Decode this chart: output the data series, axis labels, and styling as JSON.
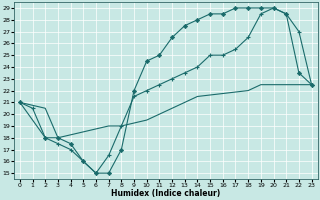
{
  "xlabel": "Humidex (Indice chaleur)",
  "bg_color": "#c8e8e4",
  "line_color": "#1a6b6b",
  "grid_color": "#b0d8d4",
  "xlim": [
    -0.5,
    23.5
  ],
  "ylim": [
    14.5,
    29.5
  ],
  "xticks": [
    0,
    1,
    2,
    3,
    4,
    5,
    6,
    7,
    8,
    9,
    10,
    11,
    12,
    13,
    14,
    15,
    16,
    17,
    18,
    19,
    20,
    21,
    22,
    23
  ],
  "yticks": [
    15,
    16,
    17,
    18,
    19,
    20,
    21,
    22,
    23,
    24,
    25,
    26,
    27,
    28,
    29
  ],
  "line1_x": [
    0,
    1,
    2,
    3,
    4,
    5,
    6,
    7,
    8,
    9,
    10,
    11,
    12,
    13,
    14,
    15,
    16,
    17,
    18,
    19,
    20,
    21,
    22,
    23
  ],
  "line1_y": [
    21,
    20.5,
    18,
    17.5,
    17,
    16,
    15,
    16.5,
    19,
    21.5,
    22,
    22.5,
    23,
    23.5,
    24,
    25,
    25,
    25.5,
    26.5,
    28.5,
    29,
    28.5,
    27,
    22.5
  ],
  "line2_x": [
    0,
    2,
    3,
    4,
    5,
    6,
    7,
    8,
    9,
    10,
    11,
    12,
    13,
    14,
    15,
    16,
    17,
    18,
    19,
    20,
    21,
    22,
    23
  ],
  "line2_y": [
    21,
    18,
    18,
    17.5,
    16,
    15,
    15,
    17,
    22,
    24.5,
    25,
    26.5,
    27.5,
    28,
    28.5,
    28.5,
    29,
    29,
    29,
    29,
    28.5,
    23.5,
    22.5
  ],
  "line3_x": [
    0,
    2,
    3,
    7,
    8,
    10,
    14,
    18,
    19,
    20,
    21,
    22,
    23
  ],
  "line3_y": [
    21,
    20.5,
    18,
    19,
    19,
    19.5,
    21.5,
    22,
    22.5,
    22.5,
    22.5,
    22.5,
    22.5
  ]
}
